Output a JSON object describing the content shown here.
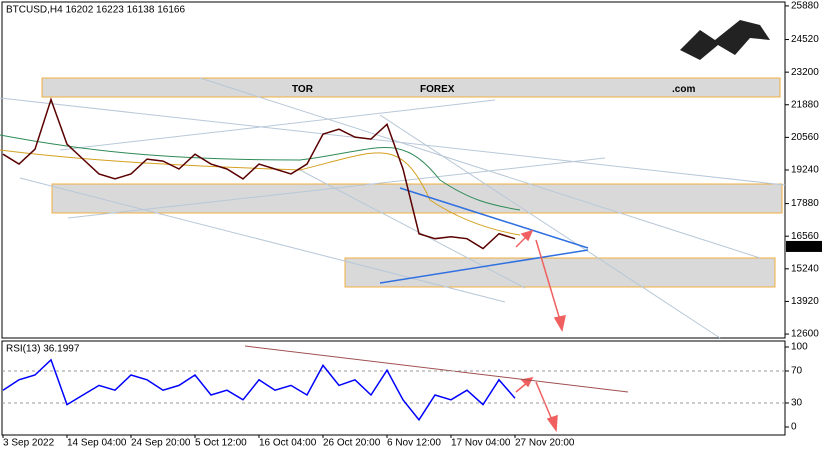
{
  "watermark": {
    "part1": "TOR",
    "part2": "FOREX",
    "part3": ".com"
  },
  "chart_data": [
    {
      "type": "line",
      "title": "BTCUSD,H4 16202 16223 16138 16166",
      "color": "#5a0000",
      "values": [
        19880,
        19480,
        20080,
        22090,
        20285,
        19680,
        19080,
        18880,
        19080,
        19680,
        19600,
        19280,
        19880,
        19480,
        19280,
        18880,
        19480,
        19280,
        19080,
        19480,
        20690,
        20890,
        20570,
        20490,
        21090,
        19280,
        16660,
        16460,
        16540,
        16460,
        16060,
        16660,
        16460
      ],
      "current_price": 16166,
      "ylim": [
        12440,
        26120
      ],
      "yticks": [
        12600,
        13920,
        15240,
        16560,
        17880,
        19240,
        20560,
        21880,
        23200,
        24520,
        25880
      ]
    },
    {
      "type": "line",
      "title": "RSI(13) 36.1997",
      "color": "#0000ff",
      "categories": [
        "3 Sep 2022",
        null,
        null,
        null,
        "14 Sep 04:00",
        null,
        null,
        null,
        "24 Sep 20:00",
        null,
        null,
        null,
        "5 Oct 12:00",
        null,
        null,
        null,
        "16 Oct 04:00",
        null,
        null,
        null,
        "26 Oct 20:00",
        null,
        null,
        null,
        "6 Nov 12:00",
        null,
        null,
        null,
        "17 Nov 04:00",
        null,
        null,
        null,
        "27 Nov 20:00"
      ],
      "values": [
        46,
        59,
        65,
        84,
        28,
        40,
        52,
        46,
        65,
        59,
        46,
        52,
        65,
        40,
        46,
        34,
        59,
        46,
        52,
        40,
        77,
        52,
        59,
        40,
        71,
        34,
        9,
        40,
        34,
        46,
        28,
        59,
        36
      ],
      "ylim": [
        -10,
        107.5
      ],
      "yticks": [
        0,
        30,
        70,
        100
      ]
    }
  ]
}
